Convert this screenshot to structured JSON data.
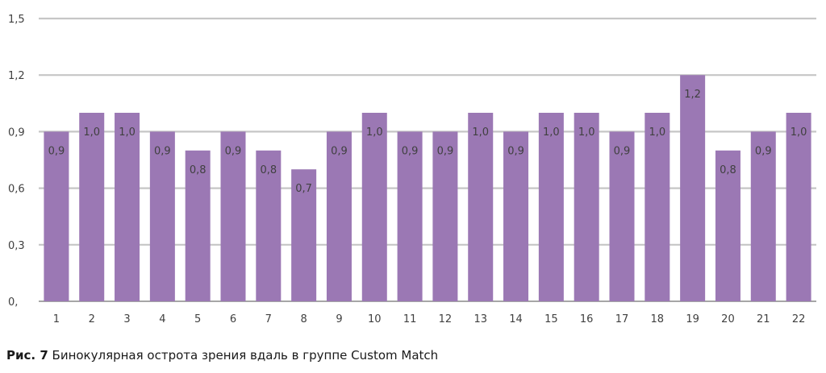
{
  "chart_data": {
    "type": "bar",
    "categories": [
      "1",
      "2",
      "3",
      "4",
      "5",
      "6",
      "7",
      "8",
      "9",
      "10",
      "11",
      "12",
      "13",
      "14",
      "15",
      "16",
      "17",
      "18",
      "19",
      "20",
      "21",
      "22"
    ],
    "values": [
      0.9,
      1.0,
      1.0,
      0.9,
      0.8,
      0.9,
      0.8,
      0.7,
      0.9,
      1.0,
      0.9,
      0.9,
      1.0,
      0.9,
      1.0,
      1.0,
      0.9,
      1.0,
      1.2,
      0.8,
      0.9,
      1.0
    ],
    "data_labels": [
      "0,9",
      "1,0",
      "1,0",
      "0,9",
      "0,8",
      "0,9",
      "0,8",
      "0,7",
      "0,9",
      "1,0",
      "0,9",
      "0,9",
      "1,0",
      "0,9",
      "1,0",
      "1,0",
      "0,9",
      "1,0",
      "1,2",
      "0,8",
      "0,9",
      "1,0"
    ],
    "ylim": [
      0,
      1.5
    ],
    "yticks": [
      0,
      0.3,
      0.6,
      0.9,
      1.2,
      1.5
    ],
    "ytick_labels": [
      "0,",
      "0,3",
      "0,6",
      "0,9",
      "1,2",
      "1,5"
    ],
    "grid": true,
    "title": "",
    "xlabel": "",
    "ylabel": ""
  },
  "caption": {
    "lead": "Рис. 7",
    "text": " Бинокулярная острота зрения вдаль в группе Custom Match"
  },
  "colors": {
    "bar": "#9b78b4",
    "grid": "#c6c6c6",
    "axis": "#a6a6a6",
    "text": "#404040"
  }
}
